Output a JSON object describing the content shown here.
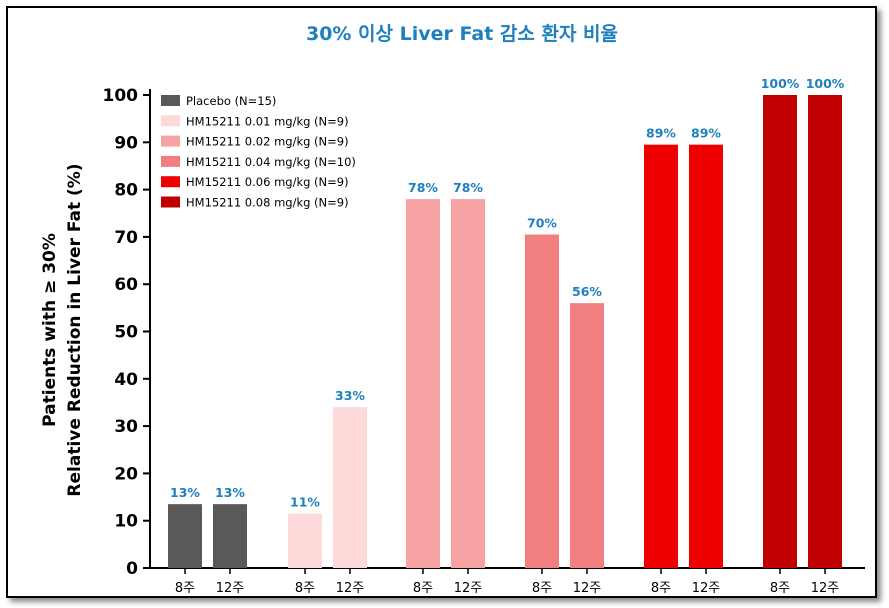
{
  "chart_data": {
    "type": "bar",
    "title": "30% 이상 Liver Fat 감소 환자 비율",
    "ylabel_line1": "Patients with ≥ 30%",
    "ylabel_line2": "Relative Reduction in Liver Fat (%)",
    "xlabel": "",
    "ylim": [
      0,
      100
    ],
    "yticks": [
      0,
      10,
      20,
      30,
      40,
      50,
      60,
      70,
      80,
      90,
      100
    ],
    "grid": false,
    "legend_position": "top-left",
    "groups": [
      {
        "name": "Placebo (N=15)",
        "color": "#595959",
        "bars": [
          {
            "x": "8주",
            "value": 13,
            "label": "13%",
            "height_value": 13.5
          },
          {
            "x": "12주",
            "value": 13,
            "label": "13%",
            "height_value": 13.5
          }
        ]
      },
      {
        "name": "HM15211 0.01 mg/kg (N=9)",
        "color": "#fdd9d9",
        "bars": [
          {
            "x": "8주",
            "value": 11,
            "label": "11%",
            "height_value": 11.5
          },
          {
            "x": "12주",
            "value": 33,
            "label": "33%",
            "height_value": 34
          }
        ]
      },
      {
        "name": "HM15211 0.02 mg/kg (N=9)",
        "color": "#f7a3a3",
        "bars": [
          {
            "x": "8주",
            "value": 78,
            "label": "78%",
            "height_value": 78
          },
          {
            "x": "12주",
            "value": 78,
            "label": "78%",
            "height_value": 78
          }
        ]
      },
      {
        "name": "HM15211 0.04 mg/kg (N=10)",
        "color": "#f27f80",
        "bars": [
          {
            "x": "8주",
            "value": 70,
            "label": "70%",
            "height_value": 70.5
          },
          {
            "x": "12주",
            "value": 56,
            "label": "56%",
            "height_value": 56
          }
        ]
      },
      {
        "name": "HM15211 0.06 mg/kg (N=9)",
        "color": "#ee0000",
        "bars": [
          {
            "x": "8주",
            "value": 89,
            "label": "89%",
            "height_value": 89.5
          },
          {
            "x": "12주",
            "value": 89,
            "label": "89%",
            "height_value": 89.5
          }
        ]
      },
      {
        "name": "HM15211 0.08 mg/kg (N=9)",
        "color": "#c00000",
        "bars": [
          {
            "x": "8주",
            "value": 100,
            "label": "100%",
            "height_value": 100
          },
          {
            "x": "12주",
            "value": 100,
            "label": "100%",
            "height_value": 100
          }
        ]
      }
    ]
  }
}
